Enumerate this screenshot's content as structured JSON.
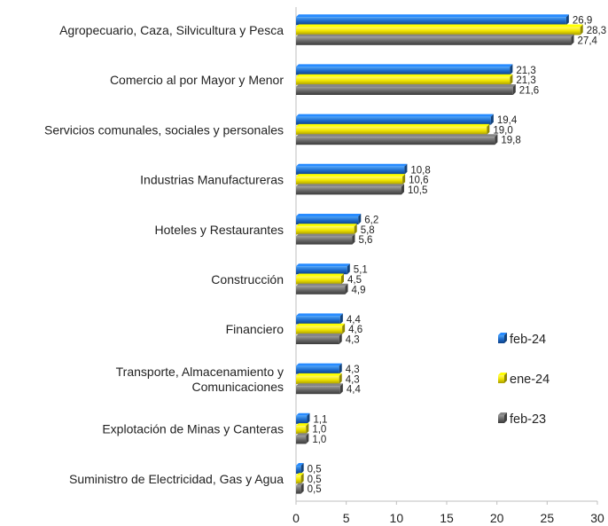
{
  "chart_data": {
    "type": "bar",
    "orientation": "horizontal",
    "title": "",
    "xlabel": "",
    "ylabel": "",
    "xlim": [
      0,
      30
    ],
    "xticks": [
      0,
      5,
      10,
      15,
      20,
      25,
      30
    ],
    "xtick_labels": [
      "0",
      "5",
      "10",
      "15",
      "20",
      "25",
      "30"
    ],
    "grid": false,
    "legend_position": "right",
    "categories": [
      [
        "Agropecuario, Caza, Silvicultura y Pesca"
      ],
      [
        "Comercio al por Mayor y Menor"
      ],
      [
        "Servicios comunales, sociales y personales"
      ],
      [
        "Industrias Manufactureras"
      ],
      [
        "Hoteles y Restaurantes"
      ],
      [
        "Construcción"
      ],
      [
        "Financiero"
      ],
      [
        "Transporte, Almacenamiento y",
        "Comunicaciones"
      ],
      [
        "Explotación de Minas y Canteras"
      ],
      [
        "Suministro de Electricidad, Gas y Agua"
      ]
    ],
    "series": [
      {
        "name": "feb-24",
        "color": "#1f6fce",
        "values": [
          26.9,
          21.3,
          19.4,
          10.8,
          6.2,
          5.1,
          4.4,
          4.3,
          1.1,
          0.5
        ],
        "labels": [
          "26,9",
          "21,3",
          "19,4",
          "10,8",
          "6,2",
          "5,1",
          "4,4",
          "4,3",
          "1,1",
          "0,5"
        ]
      },
      {
        "name": "ene-24",
        "color": "#f2e600",
        "values": [
          28.3,
          21.3,
          19.0,
          10.6,
          5.8,
          4.5,
          4.6,
          4.3,
          1.0,
          0.5
        ],
        "labels": [
          "28,3",
          "21,3",
          "19,0",
          "10,6",
          "5,8",
          "4,5",
          "4,6",
          "4,3",
          "1,0",
          "0,5"
        ]
      },
      {
        "name": "feb-23",
        "color": "#6b6b6b",
        "values": [
          27.4,
          21.6,
          19.8,
          10.5,
          5.6,
          4.9,
          4.3,
          4.4,
          1.0,
          0.5
        ],
        "labels": [
          "27,4",
          "21,6",
          "19,8",
          "10,5",
          "5,6",
          "4,9",
          "4,3",
          "4,4",
          "1,0",
          "0,5"
        ]
      }
    ]
  }
}
